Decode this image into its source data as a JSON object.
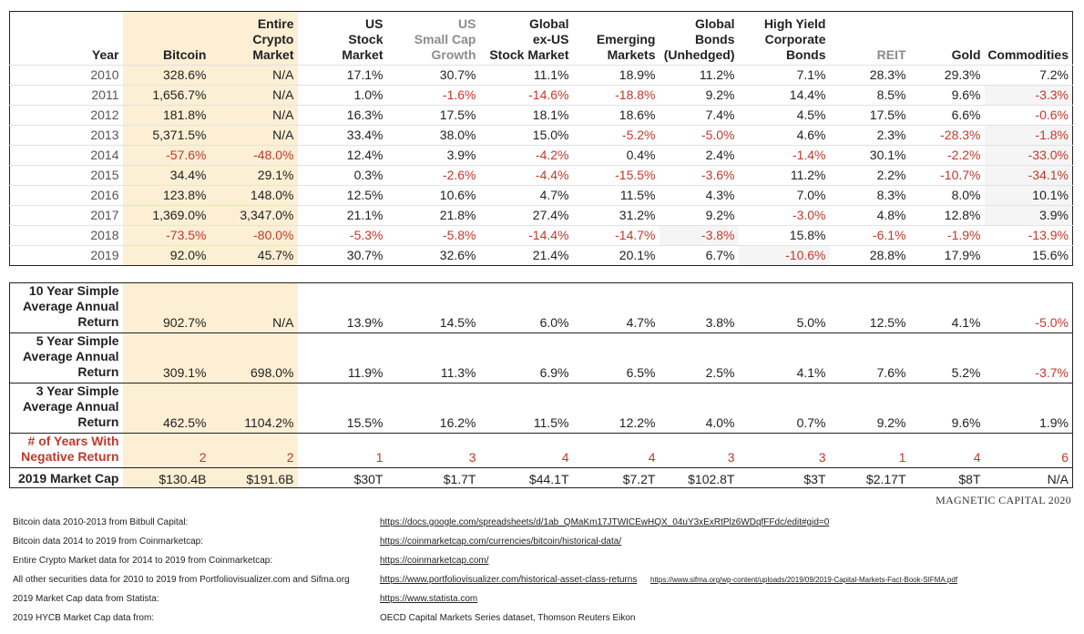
{
  "headers": [
    {
      "text": "Year",
      "gray": false
    },
    {
      "text": "Bitcoin",
      "gray": false
    },
    {
      "text": "Entire\nCrypto\nMarket",
      "gray": false
    },
    {
      "text": "US\nStock\nMarket",
      "gray": false
    },
    {
      "text": "US\nSmall Cap\nGrowth",
      "gray": true
    },
    {
      "text": "Global\nex-US\nStock Market",
      "gray": false
    },
    {
      "text": "Emerging\nMarkets",
      "gray": false
    },
    {
      "text": "Global\nBonds\n(Unhedged)",
      "gray": false
    },
    {
      "text": "High Yield\nCorporate\nBonds",
      "gray": false
    },
    {
      "text": "REIT",
      "gray": true
    },
    {
      "text": "Gold",
      "gray": false
    },
    {
      "text": "Commodities",
      "gray": false
    }
  ],
  "rows": [
    [
      "2010",
      "328.6%",
      "N/A",
      "17.1%",
      "30.7%",
      "11.1%",
      "18.9%",
      "11.2%",
      "7.1%",
      "28.3%",
      "29.3%",
      "7.2%"
    ],
    [
      "2011",
      "1,656.7%",
      "N/A",
      "1.0%",
      "-1.6%",
      "-14.6%",
      "-18.8%",
      "9.2%",
      "14.4%",
      "8.5%",
      "9.6%",
      "-3.3%"
    ],
    [
      "2012",
      "181.8%",
      "N/A",
      "16.3%",
      "17.5%",
      "18.1%",
      "18.6%",
      "7.4%",
      "4.5%",
      "17.5%",
      "6.6%",
      "-0.6%"
    ],
    [
      "2013",
      "5,371.5%",
      "N/A",
      "33.4%",
      "38.0%",
      "15.0%",
      "-5.2%",
      "-5.0%",
      "4.6%",
      "2.3%",
      "-28.3%",
      "-1.8%"
    ],
    [
      "2014",
      "-57.6%",
      "-48.0%",
      "12.4%",
      "3.9%",
      "-4.2%",
      "0.4%",
      "2.4%",
      "-1.4%",
      "30.1%",
      "-2.2%",
      "-33.0%"
    ],
    [
      "2015",
      "34.4%",
      "29.1%",
      "0.3%",
      "-2.6%",
      "-4.4%",
      "-15.5%",
      "-3.6%",
      "11.2%",
      "2.2%",
      "-10.7%",
      "-34.1%"
    ],
    [
      "2016",
      "123.8%",
      "148.0%",
      "12.5%",
      "10.6%",
      "4.7%",
      "11.5%",
      "4.3%",
      "7.0%",
      "8.3%",
      "8.0%",
      "10.1%"
    ],
    [
      "2017",
      "1,369.0%",
      "3,347.0%",
      "21.1%",
      "21.8%",
      "27.4%",
      "31.2%",
      "9.2%",
      "-3.0%",
      "4.8%",
      "12.8%",
      "3.9%"
    ],
    [
      "2018",
      "-73.5%",
      "-80.0%",
      "-5.3%",
      "-5.8%",
      "-14.4%",
      "-14.7%",
      "-3.8%",
      "15.8%",
      "-6.1%",
      "-1.9%",
      "-13.9%"
    ],
    [
      "2019",
      "92.0%",
      "45.7%",
      "30.7%",
      "32.6%",
      "21.4%",
      "20.1%",
      "6.7%",
      "-10.6%",
      "28.8%",
      "17.9%",
      "15.6%"
    ]
  ],
  "summary": [
    {
      "label": "10 Year Simple\nAverage Annual\nReturn",
      "kind": "multi",
      "values": [
        "902.7%",
        "N/A",
        "13.9%",
        "14.5%",
        "6.0%",
        "4.7%",
        "3.8%",
        "5.0%",
        "12.5%",
        "4.1%",
        "-5.0%"
      ]
    },
    {
      "label": "5 Year Simple\nAverage Annual\nReturn",
      "kind": "multi",
      "values": [
        "309.1%",
        "698.0%",
        "11.9%",
        "11.3%",
        "6.9%",
        "6.5%",
        "2.5%",
        "4.1%",
        "7.6%",
        "5.2%",
        "-3.7%"
      ]
    },
    {
      "label": "3 Year Simple\nAverage Annual\nReturn",
      "kind": "multi",
      "values": [
        "462.5%",
        "1104.2%",
        "15.5%",
        "16.2%",
        "11.5%",
        "12.2%",
        "4.0%",
        "0.7%",
        "9.2%",
        "9.6%",
        "1.9%"
      ]
    },
    {
      "label": "# of Years With\nNegative Return",
      "kind": "neg",
      "values": [
        "2",
        "2",
        "1",
        "3",
        "4",
        "4",
        "3",
        "3",
        "1",
        "4",
        "6"
      ]
    },
    {
      "label": "2019 Market Cap",
      "kind": "cap",
      "values": [
        "$130.4B",
        "$191.6B",
        "$30T",
        "$1.7T",
        "$44.1T",
        "$7.2T",
        "$102.8T",
        "$3T",
        "$2.17T",
        "$8T",
        "N/A"
      ]
    }
  ],
  "brand": "MAGNETIC CAPITAL 2020",
  "sources": [
    {
      "label": "Bitcoin data 2010-2013 from Bitbull Capital:",
      "link": "https://docs.google.com/spreadsheets/d/1ab_QMaKm17JTWICEwHQX_04uY3xExRtPlz6WDqfFFdc/edit#gid=0",
      "link2": "",
      "plain": ""
    },
    {
      "label": "Bitcoin data 2014 to 2019 from Coinmarketcap:",
      "link": "https://coinmarketcap.com/currencies/bitcoin/historical-data/",
      "link2": "",
      "plain": ""
    },
    {
      "label": "Entire Crypto Market data for 2014 to 2019 from Coinmarketcap:",
      "link": "https://coinmarketcap.com/",
      "link2": "",
      "plain": ""
    },
    {
      "label": "All other securities data for 2010 to 2019 from Portfoliovisualizer.com and Sifma.org",
      "link": "https://www.portfoliovisualizer.com/historical-asset-class-returns",
      "link2": "https://www.sifma.org/wp-content/uploads/2019/09/2019-Capital-Markets-Fact-Book-SIFMA.pdf",
      "plain": ""
    },
    {
      "label": "2019 Market Cap data from Statista:",
      "link": "https://www.statista.com",
      "link2": "",
      "plain": ""
    },
    {
      "label": "2019 HYCB Market Cap data from:",
      "link": "",
      "link2": "",
      "plain": "OECD Capital Markets Series dataset, Thomson Reuters Eikon"
    }
  ]
}
